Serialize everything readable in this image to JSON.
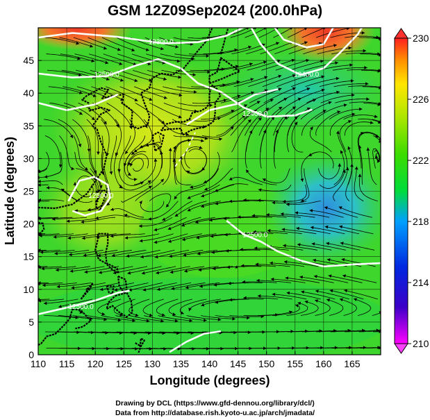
{
  "title": "GSM 12Z09Sep2024 (200.0hPa)",
  "map": {
    "lon_range": [
      110,
      170
    ],
    "lat_range": [
      0,
      50
    ],
    "x_ticks": [
      110,
      115,
      120,
      125,
      130,
      135,
      140,
      145,
      150,
      155,
      160,
      165
    ],
    "y_ticks": [
      0,
      5,
      10,
      15,
      20,
      25,
      30,
      35,
      40,
      45
    ],
    "xlabel": "Longitude (degrees)",
    "ylabel": "Latitude (degrees)",
    "grid": true,
    "contour_labels": [
      {
        "text": "12300.0",
        "lon": 131.5,
        "lat": 47.5
      },
      {
        "text": "12500.0",
        "lon": 122,
        "lat": 42.5
      },
      {
        "text": "12400.0",
        "lon": 157,
        "lat": 42.5
      },
      {
        "text": "12400.0",
        "lon": 148,
        "lat": 36.5
      },
      {
        "text": "12500.0",
        "lon": 121,
        "lat": 24
      },
      {
        "text": "12500.0",
        "lon": 148,
        "lat": 18
      },
      {
        "text": "12500.0",
        "lon": 117.5,
        "lat": 7
      }
    ]
  },
  "colorbar": {
    "ticks": [
      230,
      226,
      222,
      218,
      214,
      210
    ],
    "min": 210,
    "max": 230,
    "colors": [
      "#ff00ff",
      "#0000c8",
      "#0050ff",
      "#00c8ff",
      "#00dc32",
      "#64e600",
      "#ffff00",
      "#ff9600",
      "#ff1e1e"
    ]
  },
  "credits": [
    "Drawing by DCL (https://www.gfd-dennou.org/library/dcl/)",
    "Data from http://database.rish.kyoto-u.ac.jp/arch/jmadata/"
  ]
}
